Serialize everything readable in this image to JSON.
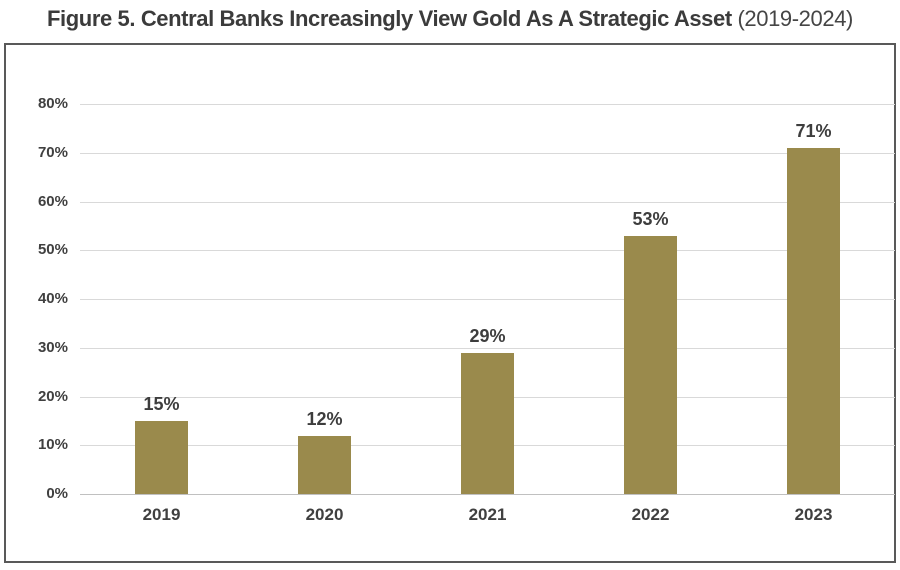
{
  "figure_title": {
    "bold_part": "Figure 5. Central Banks Increasingly View Gold As A Strategic Asset",
    "regular_part": " (2019-2024)"
  },
  "chart_data": {
    "type": "bar",
    "title": "Figure 5. Central Banks Increasingly View Gold As A Strategic Asset (2019-2024)",
    "categories": [
      "2019",
      "2020",
      "2021",
      "2022",
      "2023"
    ],
    "values": [
      15,
      12,
      29,
      53,
      71
    ],
    "value_labels": [
      "15%",
      "12%",
      "29%",
      "53%",
      "71%"
    ],
    "y_ticks": [
      {
        "value": 0,
        "label": "0%"
      },
      {
        "value": 10,
        "label": "10%"
      },
      {
        "value": 20,
        "label": "20%"
      },
      {
        "value": 30,
        "label": "30%"
      },
      {
        "value": 40,
        "label": "40%"
      },
      {
        "value": 50,
        "label": "50%"
      },
      {
        "value": 60,
        "label": "60%"
      },
      {
        "value": 70,
        "label": "70%"
      },
      {
        "value": 80,
        "label": "80%"
      }
    ],
    "ylim": [
      0,
      80
    ],
    "xlabel": "",
    "ylabel": "",
    "grid": true,
    "legend": "none",
    "colors": {
      "bar": "#9a8a4c",
      "gridline": "#d9d9d9",
      "axis_line": "#c0c0c0",
      "box_border": "#595959",
      "text": "#3d3d3d"
    }
  }
}
